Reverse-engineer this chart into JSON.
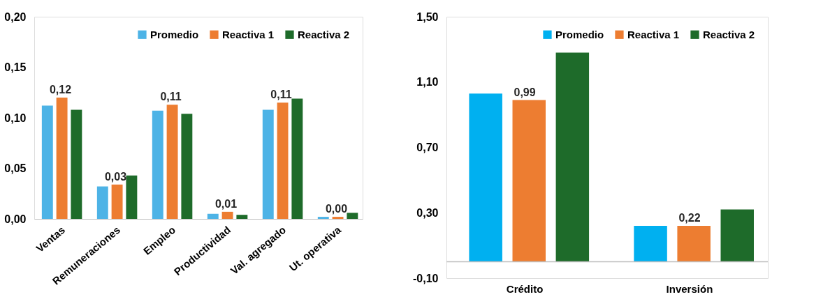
{
  "chart_data": [
    {
      "type": "bar",
      "categories": [
        "Ventas",
        "Remuneraciones",
        "Empleo",
        "Productividad",
        "Val. agregado",
        "Ut. operativa"
      ],
      "series": [
        {
          "name": "Promedio",
          "color": "#4db3e6",
          "values": [
            0.112,
            0.032,
            0.107,
            0.005,
            0.108,
            0.002
          ]
        },
        {
          "name": "Reactiva 1",
          "color": "#ed7d31",
          "values": [
            0.12,
            0.034,
            0.113,
            0.007,
            0.115,
            0.002
          ],
          "value_labels": [
            "0,12",
            "0,03",
            "0,11",
            "0,01",
            "0,11",
            "0,00"
          ]
        },
        {
          "name": "Reactiva 2",
          "color": "#1e6b2a",
          "values": [
            0.108,
            0.043,
            0.104,
            0.004,
            0.119,
            0.006
          ]
        }
      ],
      "ylim": [
        0,
        0.2
      ],
      "yticks": [
        {
          "value": 0,
          "label": "0,00"
        },
        {
          "value": 0.05,
          "label": "0,05"
        },
        {
          "value": 0.1,
          "label": "0,10"
        },
        {
          "value": 0.15,
          "label": "0,15"
        },
        {
          "value": 0.2,
          "label": "0,20"
        }
      ],
      "grid": false,
      "legend": "top right"
    },
    {
      "type": "bar",
      "categories": [
        "Crédito",
        "Inversión"
      ],
      "series": [
        {
          "name": "Promedio",
          "color": "#00b0f0",
          "values": [
            1.03,
            0.22
          ]
        },
        {
          "name": "Reactiva 1",
          "color": "#ed7d31",
          "values": [
            0.99,
            0.22
          ],
          "value_labels": [
            "0,99",
            "0,22"
          ]
        },
        {
          "name": "Reactiva 2",
          "color": "#1e6b2a",
          "values": [
            1.28,
            0.32
          ]
        }
      ],
      "ylim": [
        -0.1,
        1.5
      ],
      "yticks": [
        {
          "value": -0.1,
          "label": "-0,10"
        },
        {
          "value": 0.3,
          "label": "0,30"
        },
        {
          "value": 0.7,
          "label": "0,70"
        },
        {
          "value": 1.1,
          "label": "1,10"
        },
        {
          "value": 1.5,
          "label": "1,50"
        }
      ],
      "ref_lines": [
        {
          "axis": "y",
          "value": 0,
          "color": "#bfbfbf"
        }
      ],
      "grid": false,
      "legend": "top right"
    }
  ]
}
